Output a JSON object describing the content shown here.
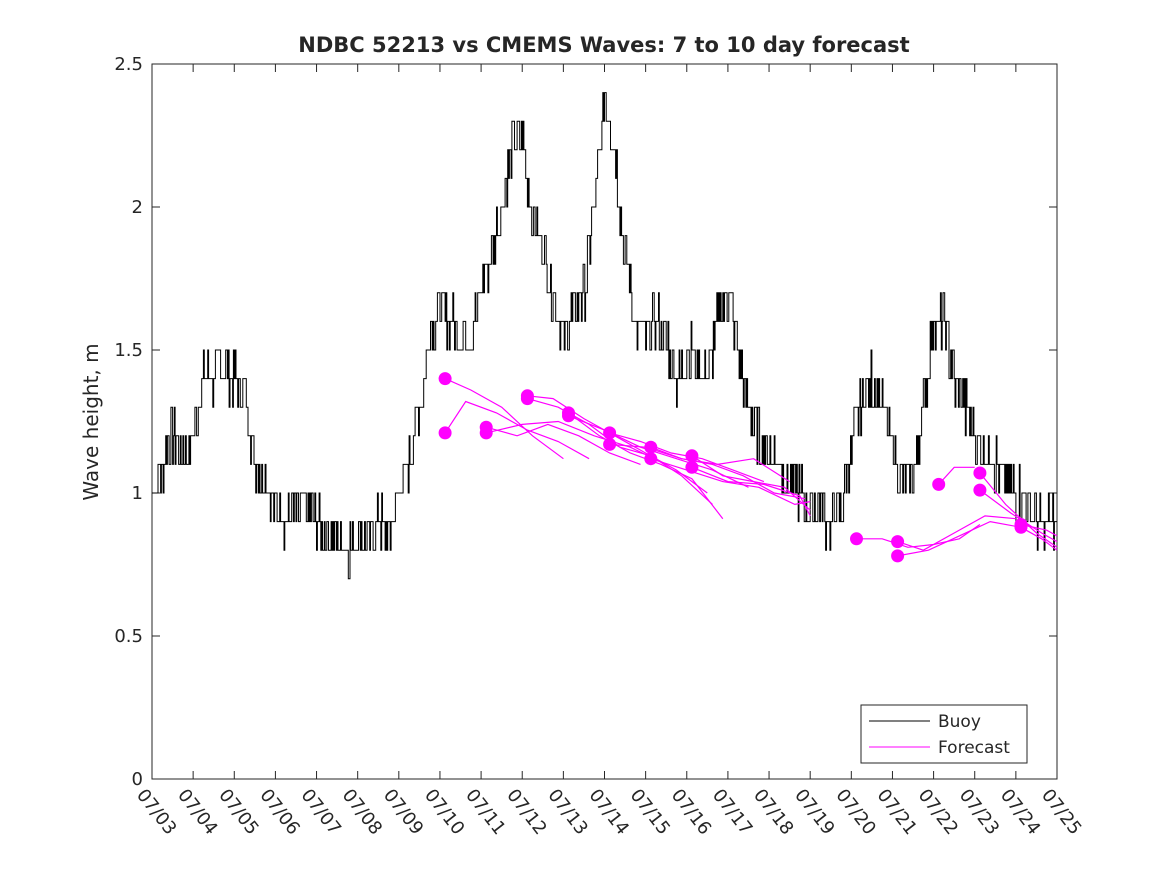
{
  "chart_data": {
    "type": "line",
    "title": "NDBC 52213 vs CMEMS Waves: 7 to 10 day forecast",
    "xlabel": "",
    "ylabel": "Wave height, m",
    "xlim": [
      "07/03",
      "07/25"
    ],
    "ylim": [
      0,
      2.5
    ],
    "x_ticks": [
      "07/03",
      "07/04",
      "07/05",
      "07/06",
      "07/07",
      "07/08",
      "07/09",
      "07/10",
      "07/11",
      "07/12",
      "07/13",
      "07/14",
      "07/15",
      "07/16",
      "07/17",
      "07/18",
      "07/19",
      "07/20",
      "07/21",
      "07/22",
      "07/23",
      "07/24",
      "07/25"
    ],
    "y_ticks": [
      "0",
      "0.5",
      "1",
      "1.5",
      "2",
      "2.5"
    ],
    "grid": false,
    "legend_position": "bottom-right",
    "colors": {
      "Buoy": "#000000",
      "Forecast": "#ff00ff"
    },
    "series": [
      {
        "name": "Buoy",
        "x_days": [
          "07/03 00:00",
          "07/03 06:00",
          "07/03 12:00",
          "07/03 18:00",
          "07/04 00:00",
          "07/04 06:00",
          "07/04 12:00",
          "07/04 18:00",
          "07/05 00:00",
          "07/05 06:00",
          "07/05 12:00",
          "07/05 18:00",
          "07/06 00:00",
          "07/06 06:00",
          "07/06 12:00",
          "07/06 18:00",
          "07/07 00:00",
          "07/07 06:00",
          "07/07 12:00",
          "07/07 18:00",
          "07/08 00:00",
          "07/08 06:00",
          "07/08 12:00",
          "07/08 18:00",
          "07/09 00:00",
          "07/09 06:00",
          "07/09 12:00",
          "07/09 18:00",
          "07/10 00:00",
          "07/10 06:00",
          "07/10 12:00",
          "07/10 18:00",
          "07/11 00:00",
          "07/11 06:00",
          "07/11 12:00",
          "07/11 18:00",
          "07/12 00:00",
          "07/12 06:00",
          "07/12 12:00",
          "07/12 18:00",
          "07/13 00:00",
          "07/13 06:00",
          "07/13 12:00",
          "07/13 18:00",
          "07/14 00:00",
          "07/14 06:00",
          "07/14 12:00",
          "07/14 18:00",
          "07/15 00:00",
          "07/15 06:00",
          "07/15 12:00",
          "07/15 18:00",
          "07/16 00:00",
          "07/16 06:00",
          "07/16 12:00",
          "07/16 18:00",
          "07/17 00:00",
          "07/17 06:00",
          "07/17 12:00",
          "07/17 18:00",
          "07/18 00:00",
          "07/18 06:00",
          "07/18 12:00",
          "07/18 18:00",
          "07/19 00:00",
          "07/19 06:00",
          "07/19 12:00",
          "07/19 18:00",
          "07/20 00:00",
          "07/20 06:00",
          "07/20 12:00",
          "07/20 18:00",
          "07/21 00:00",
          "07/21 06:00",
          "07/21 12:00",
          "07/21 18:00",
          "07/22 00:00",
          "07/22 06:00",
          "07/22 12:00",
          "07/22 18:00",
          "07/23 00:00",
          "07/23 06:00",
          "07/23 12:00",
          "07/23 18:00",
          "07/24 00:00",
          "07/24 06:00",
          "07/24 12:00",
          "07/24 18:00",
          "07/25 00:00"
        ],
        "values": [
          1.0,
          1.1,
          1.2,
          1.15,
          1.2,
          1.4,
          1.4,
          1.45,
          1.4,
          1.35,
          1.1,
          1.05,
          0.95,
          0.9,
          0.95,
          0.95,
          0.9,
          0.85,
          0.85,
          0.8,
          0.85,
          0.85,
          0.9,
          0.85,
          1.0,
          1.1,
          1.3,
          1.55,
          1.65,
          1.6,
          1.55,
          1.55,
          1.7,
          1.85,
          2.0,
          2.2,
          2.25,
          1.95,
          1.85,
          1.7,
          1.55,
          1.65,
          1.7,
          2.0,
          2.4,
          2.2,
          1.8,
          1.6,
          1.55,
          1.6,
          1.55,
          1.4,
          1.5,
          1.45,
          1.4,
          1.6,
          1.7,
          1.5,
          1.3,
          1.2,
          1.15,
          1.1,
          1.05,
          1.0,
          0.95,
          0.95,
          0.9,
          0.95,
          1.15,
          1.3,
          1.4,
          1.3,
          1.15,
          1.05,
          1.05,
          1.3,
          1.6,
          1.6,
          1.4,
          1.3,
          1.2,
          1.15,
          1.1,
          1.05,
          1.0,
          1.0,
          0.9,
          0.9,
          0.9
        ]
      },
      {
        "name": "Forecast",
        "segments": [
          {
            "x_days": [
              "07/10 03:00",
              "07/10 18:00",
              "07/11 12:00",
              "07/12 06:00",
              "07/13 00:00"
            ],
            "values": [
              1.4,
              1.36,
              1.3,
              1.2,
              1.12
            ]
          },
          {
            "x_days": [
              "07/10 03:00",
              "07/10 15:00",
              "07/11 09:00",
              "07/12 03:00",
              "07/12 21:00",
              "07/13 15:00"
            ],
            "values": [
              1.21,
              1.32,
              1.28,
              1.22,
              1.18,
              1.12
            ]
          },
          {
            "x_days": [
              "07/11 03:00",
              "07/11 21:00",
              "07/12 15:00",
              "07/13 09:00",
              "07/14 03:00",
              "07/14 21:00"
            ],
            "values": [
              1.23,
              1.2,
              1.24,
              1.2,
              1.14,
              1.1
            ]
          },
          {
            "x_days": [
              "07/11 03:00",
              "07/12 00:00",
              "07/12 21:00",
              "07/13 18:00",
              "07/14 15:00",
              "07/15 12:00"
            ],
            "values": [
              1.21,
              1.24,
              1.25,
              1.2,
              1.16,
              1.1
            ]
          },
          {
            "x_days": [
              "07/12 03:00",
              "07/12 18:00",
              "07/13 12:00",
              "07/14 06:00",
              "07/15 00:00",
              "07/15 18:00",
              "07/16 12:00"
            ],
            "values": [
              1.34,
              1.33,
              1.26,
              1.2,
              1.14,
              1.08,
              1.0
            ]
          },
          {
            "x_days": [
              "07/12 03:00",
              "07/12 21:00",
              "07/13 15:00",
              "07/14 09:00",
              "07/15 03:00",
              "07/15 21:00",
              "07/16 15:00"
            ],
            "values": [
              1.33,
              1.3,
              1.24,
              1.16,
              1.13,
              1.06,
              0.96
            ]
          },
          {
            "x_days": [
              "07/13 03:00",
              "07/13 21:00",
              "07/14 15:00",
              "07/15 09:00",
              "07/16 03:00",
              "07/16 21:00"
            ],
            "values": [
              1.28,
              1.2,
              1.14,
              1.1,
              1.05,
              0.91
            ]
          },
          {
            "x_days": [
              "07/13 03:00",
              "07/14 00:00",
              "07/14 21:00",
              "07/15 18:00",
              "07/16 15:00",
              "07/17 12:00"
            ],
            "values": [
              1.27,
              1.22,
              1.16,
              1.12,
              1.08,
              1.02
            ]
          },
          {
            "x_days": [
              "07/14 03:00",
              "07/14 21:00",
              "07/15 15:00",
              "07/16 09:00",
              "07/17 03:00",
              "07/17 21:00"
            ],
            "values": [
              1.21,
              1.18,
              1.14,
              1.12,
              1.08,
              1.04
            ]
          },
          {
            "x_days": [
              "07/14 03:00",
              "07/15 00:00",
              "07/15 21:00",
              "07/16 18:00",
              "07/17 15:00",
              "07/18 12:00"
            ],
            "values": [
              1.17,
              1.16,
              1.12,
              1.1,
              1.12,
              1.04
            ]
          },
          {
            "x_days": [
              "07/15 03:00",
              "07/15 21:00",
              "07/16 15:00",
              "07/17 09:00",
              "07/18 03:00",
              "07/18 21:00"
            ],
            "values": [
              1.16,
              1.12,
              1.1,
              1.06,
              1.0,
              0.98
            ]
          },
          {
            "x_days": [
              "07/15 03:00",
              "07/16 00:00",
              "07/16 21:00",
              "07/17 18:00",
              "07/18 15:00",
              "07/19 00:00"
            ],
            "values": [
              1.12,
              1.08,
              1.04,
              1.02,
              0.96,
              0.97
            ]
          },
          {
            "x_days": [
              "07/16 03:00",
              "07/16 21:00",
              "07/17 15:00",
              "07/18 09:00",
              "07/19 00:00"
            ],
            "values": [
              1.13,
              1.06,
              1.04,
              1.02,
              0.94
            ]
          },
          {
            "x_days": [
              "07/16 03:00",
              "07/17 00:00",
              "07/17 21:00",
              "07/18 18:00",
              "07/19 00:00"
            ],
            "values": [
              1.09,
              1.04,
              1.03,
              0.99,
              0.92
            ]
          },
          {
            "x_days": [
              "07/20 03:00",
              "07/20 18:00",
              "07/21 09:00",
              "07/22 00:00",
              "07/22 15:00",
              "07/23 03:00"
            ],
            "values": [
              0.84,
              0.84,
              0.81,
              0.82,
              0.84,
              0.89
            ]
          },
          {
            "x_days": [
              "07/21 03:00",
              "07/21 18:00",
              "07/22 12:00",
              "07/23 06:00",
              "07/24 00:00"
            ],
            "values": [
              0.83,
              0.8,
              0.86,
              0.92,
              0.91
            ]
          },
          {
            "x_days": [
              "07/21 03:00",
              "07/21 21:00",
              "07/22 15:00",
              "07/23 09:00",
              "07/24 03:00"
            ],
            "values": [
              0.78,
              0.8,
              0.85,
              0.9,
              0.88
            ]
          },
          {
            "x_days": [
              "07/22 03:00",
              "07/22 12:00",
              "07/23 00:00"
            ],
            "values": [
              1.03,
              1.09,
              1.09
            ]
          },
          {
            "x_days": [
              "07/23 03:00",
              "07/23 18:00",
              "07/24 12:00",
              "07/25 00:00"
            ],
            "values": [
              1.07,
              0.96,
              0.86,
              0.81
            ]
          },
          {
            "x_days": [
              "07/23 03:00",
              "07/23 21:00",
              "07/24 15:00",
              "07/25 00:00"
            ],
            "values": [
              1.01,
              0.93,
              0.86,
              0.83
            ]
          },
          {
            "x_days": [
              "07/24 03:00",
              "07/24 18:00",
              "07/25 00:00"
            ],
            "values": [
              0.89,
              0.87,
              0.85
            ]
          },
          {
            "x_days": [
              "07/24 03:00",
              "07/24 15:00",
              "07/25 00:00"
            ],
            "values": [
              0.88,
              0.84,
              0.8
            ]
          }
        ],
        "markers": {
          "x_days": [
            "07/10 03:00",
            "07/10 03:00",
            "07/11 03:00",
            "07/11 03:00",
            "07/12 03:00",
            "07/12 03:00",
            "07/13 03:00",
            "07/13 03:00",
            "07/14 03:00",
            "07/14 03:00",
            "07/15 03:00",
            "07/15 03:00",
            "07/16 03:00",
            "07/16 03:00",
            "07/20 03:00",
            "07/21 03:00",
            "07/21 03:00",
            "07/22 03:00",
            "07/23 03:00",
            "07/23 03:00",
            "07/24 03:00",
            "07/24 03:00"
          ],
          "values": [
            1.4,
            1.21,
            1.23,
            1.21,
            1.34,
            1.33,
            1.28,
            1.27,
            1.21,
            1.17,
            1.16,
            1.12,
            1.13,
            1.09,
            0.84,
            0.83,
            0.78,
            1.03,
            1.07,
            1.01,
            0.89,
            0.88
          ]
        }
      }
    ]
  }
}
